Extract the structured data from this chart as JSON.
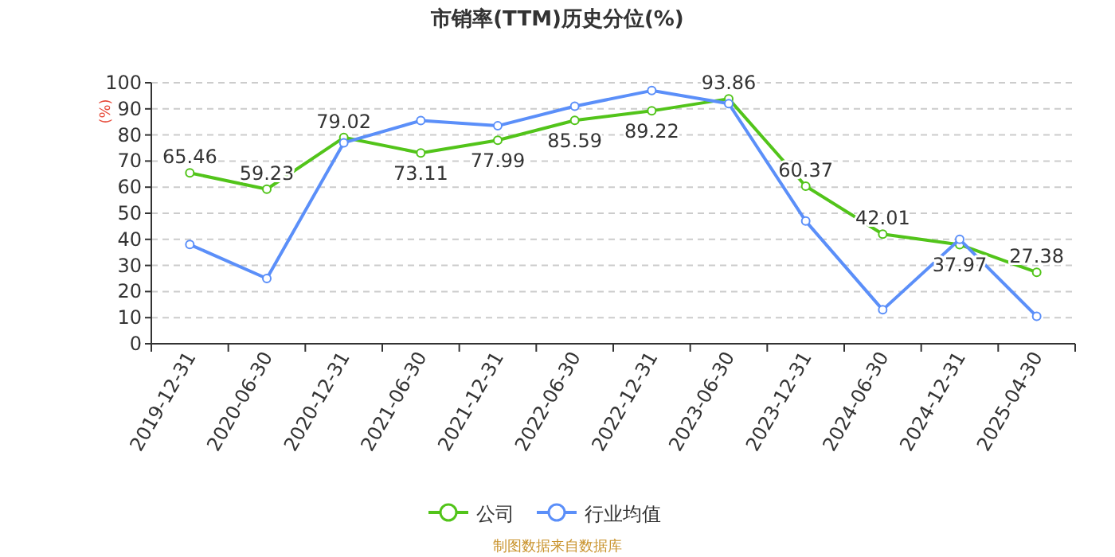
{
  "chart_data": {
    "type": "line",
    "title": "市销率(TTM)历史分位(%)",
    "ylabel": "(%)",
    "categories": [
      "2019-12-31",
      "2020-06-30",
      "2020-12-31",
      "2021-06-30",
      "2021-12-31",
      "2022-06-30",
      "2022-12-31",
      "2023-06-30",
      "2023-12-31",
      "2024-06-30",
      "2024-12-31",
      "2025-04-30"
    ],
    "series": [
      {
        "name": "公司",
        "color": "#52c41a",
        "values": [
          65.46,
          59.23,
          79.02,
          73.11,
          77.99,
          85.59,
          89.22,
          93.86,
          60.37,
          42.01,
          37.97,
          27.38
        ],
        "data_labels": true
      },
      {
        "name": "行业均值",
        "color": "#5b8ff9",
        "values": [
          38,
          25,
          77,
          85.5,
          83.5,
          91,
          97,
          92,
          47,
          13,
          40,
          10.5
        ]
      }
    ],
    "ylim": [
      0,
      100
    ],
    "yticks": [
      0,
      10,
      20,
      30,
      40,
      50,
      60,
      70,
      80,
      90,
      100
    ],
    "grid": "y",
    "legend": "bottom",
    "marker": "circle",
    "line_style": "solid",
    "annotations": [
      "制图数据来自数据库"
    ]
  }
}
